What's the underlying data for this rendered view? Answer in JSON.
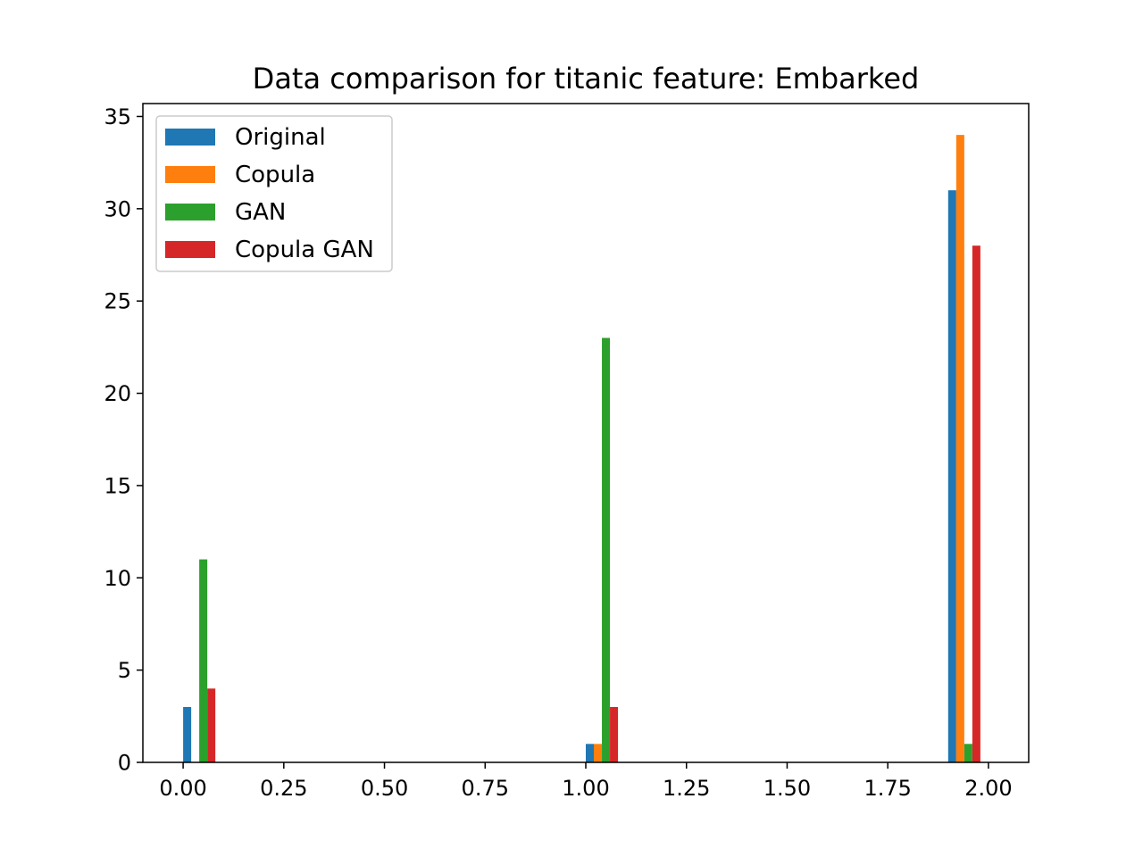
{
  "chart_data": {
    "type": "bar",
    "title": "Data comparison for titanic feature: Embarked",
    "xlabel": "",
    "ylabel": "",
    "xlim": [
      -0.1,
      2.1
    ],
    "ylim": [
      0,
      35.7
    ],
    "xticks": [
      "0.00",
      "0.25",
      "0.50",
      "0.75",
      "1.00",
      "1.25",
      "1.50",
      "1.75",
      "2.00"
    ],
    "yticks": [
      "0",
      "5",
      "10",
      "15",
      "20",
      "25",
      "30",
      "35"
    ],
    "bin_positions": [
      0.0,
      1.0,
      1.9
    ],
    "bar_width": 0.02,
    "legend_position": "upper-left",
    "grid": false,
    "series": [
      {
        "name": "Original",
        "color": "#1f77b4",
        "values": [
          3,
          1,
          31
        ]
      },
      {
        "name": "Copula",
        "color": "#ff7f0e",
        "values": [
          0,
          1,
          34
        ]
      },
      {
        "name": "GAN",
        "color": "#2ca02c",
        "values": [
          11,
          23,
          1
        ]
      },
      {
        "name": "Copula GAN",
        "color": "#d62728",
        "values": [
          4,
          3,
          28
        ]
      }
    ]
  }
}
